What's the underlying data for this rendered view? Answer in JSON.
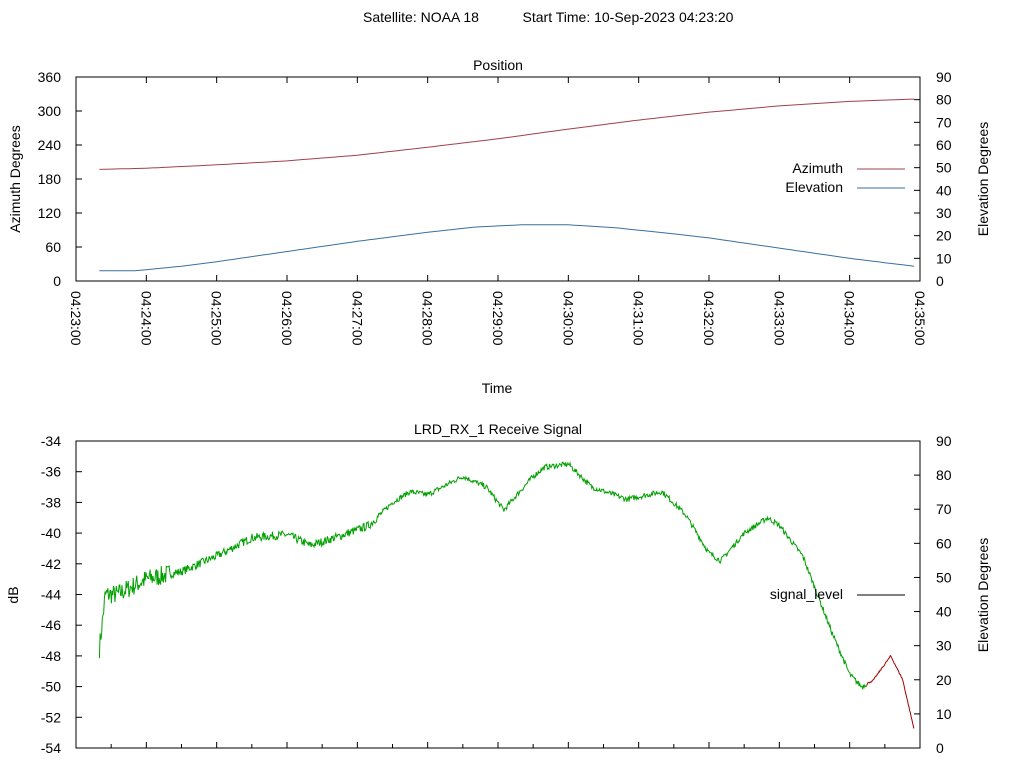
{
  "header": {
    "satellite_text": "Satellite: NOAA 18",
    "start_time_text": "Start Time: 10-Sep-2023 04:23:20"
  },
  "colors": {
    "azimuth": "#a0404f",
    "elevation": "#3a6fa0",
    "signal_green": "#00a000",
    "signal_red": "#a00000",
    "legend_signal": "#000000"
  },
  "chart_data": [
    {
      "type": "line",
      "title": "Position",
      "xlabel": "Time",
      "ylabel": "Azimuth Degrees",
      "y2label": "Elevation Degrees",
      "xlim": [
        "04:23:00",
        "04:35:00"
      ],
      "ylim": [
        0,
        360
      ],
      "y2lim": [
        0,
        90
      ],
      "x_ticks": [
        "04:23:00",
        "04:24:00",
        "04:25:00",
        "04:26:00",
        "04:27:00",
        "04:28:00",
        "04:29:00",
        "04:30:00",
        "04:31:00",
        "04:32:00",
        "04:33:00",
        "04:34:00",
        "04:35:00"
      ],
      "y_ticks": [
        "0",
        "60",
        "120",
        "180",
        "240",
        "300",
        "360"
      ],
      "y2_ticks": [
        "0",
        "10",
        "20",
        "30",
        "40",
        "50",
        "60",
        "70",
        "80",
        "90"
      ],
      "legend_position": "right",
      "series": [
        {
          "name": "Azimuth",
          "axis": "y",
          "x": [
            "04:23:20",
            "04:24:00",
            "04:25:00",
            "04:26:00",
            "04:27:00",
            "04:28:00",
            "04:29:00",
            "04:30:00",
            "04:31:00",
            "04:32:00",
            "04:33:00",
            "04:34:00",
            "04:34:55"
          ],
          "y": [
            197,
            199,
            205,
            212,
            222,
            236,
            251,
            268,
            284,
            298,
            309,
            317,
            321
          ]
        },
        {
          "name": "Elevation",
          "axis": "y2",
          "x": [
            "04:23:20",
            "04:23:50",
            "04:24:30",
            "04:25:00",
            "04:26:00",
            "04:27:00",
            "04:28:00",
            "04:28:40",
            "04:29:20",
            "04:30:00",
            "04:30:40",
            "04:31:30",
            "04:32:00",
            "04:33:00",
            "04:34:00",
            "04:34:55"
          ],
          "y": [
            4.5,
            4.5,
            6.5,
            8.5,
            13,
            17.5,
            21.5,
            23.8,
            24.8,
            24.8,
            23.5,
            20.8,
            19,
            14.5,
            10,
            6.5
          ]
        }
      ]
    },
    {
      "type": "line",
      "title": "LRD_RX_1 Receive Signal",
      "ylabel": "dB",
      "y2label": "Elevation Degrees",
      "xlim": [
        "04:23:00",
        "04:35:00"
      ],
      "ylim": [
        -54,
        -34
      ],
      "y2lim": [
        0,
        90
      ],
      "y_ticks": [
        "-54",
        "-52",
        "-50",
        "-48",
        "-46",
        "-44",
        "-42",
        "-40",
        "-38",
        "-36",
        "-34"
      ],
      "y2_ticks": [
        "0",
        "10",
        "20",
        "30",
        "40",
        "50",
        "60",
        "70",
        "80",
        "90"
      ],
      "legend_position": "right",
      "series": [
        {
          "name": "signal_level",
          "x": [
            "04:23:20",
            "04:23:25",
            "04:23:35",
            "04:24:00",
            "04:24:30",
            "04:25:00",
            "04:25:30",
            "04:26:00",
            "04:26:20",
            "04:26:45",
            "04:27:10",
            "04:27:30",
            "04:27:45",
            "04:28:00",
            "04:28:30",
            "04:28:50",
            "04:29:05",
            "04:29:15",
            "04:29:30",
            "04:29:40",
            "04:30:00",
            "04:30:20",
            "04:30:50",
            "04:31:20",
            "04:31:40",
            "04:32:00",
            "04:32:10",
            "04:32:30",
            "04:32:50",
            "04:33:00",
            "04:33:20",
            "04:33:30",
            "04:33:45",
            "04:34:00",
            "04:34:10",
            "04:34:20",
            "04:34:35",
            "04:34:45",
            "04:34:55"
          ],
          "y": [
            -47.5,
            -44.0,
            -44.0,
            -43.0,
            -42.5,
            -41.5,
            -40.3,
            -40.1,
            -40.8,
            -40.2,
            -39.5,
            -38.0,
            -37.3,
            -37.5,
            -36.3,
            -37.0,
            -38.5,
            -37.6,
            -36.3,
            -35.7,
            -35.5,
            -37.0,
            -37.8,
            -37.3,
            -38.8,
            -41.3,
            -41.8,
            -40.0,
            -39.0,
            -39.5,
            -41.5,
            -43.5,
            -46.5,
            -49.2,
            -50.0,
            -49.6,
            -48.0,
            -49.5,
            -52.8
          ]
        }
      ]
    }
  ]
}
